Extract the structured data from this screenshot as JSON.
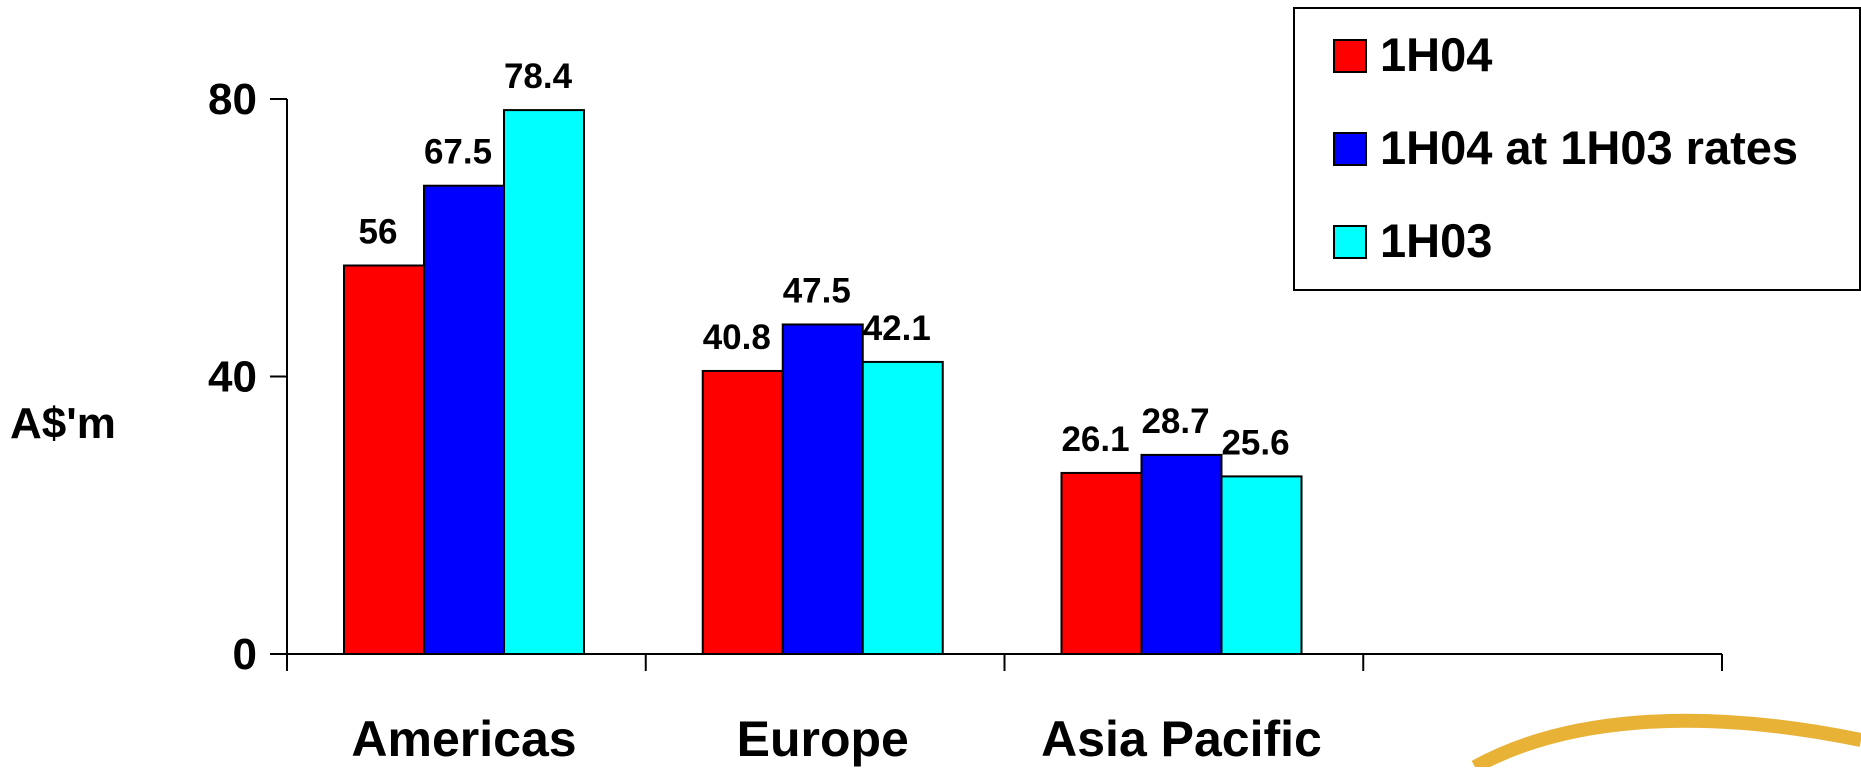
{
  "chart_data": {
    "type": "bar",
    "title": "",
    "xlabel": "",
    "ylabel": "A$'m",
    "categories": [
      "Americas",
      "Europe",
      "Asia Pacific",
      ""
    ],
    "series": [
      {
        "name": "1H04",
        "color": "#ff0000",
        "values": [
          56,
          40.8,
          26.1,
          null
        ],
        "labels": [
          "56",
          "40.8",
          "26.1",
          ""
        ]
      },
      {
        "name": "1H04 at 1H03 rates",
        "color": "#0000ff",
        "values": [
          67.5,
          47.5,
          28.7,
          null
        ],
        "labels": [
          "67.5",
          "47.5",
          "28.7",
          ""
        ]
      },
      {
        "name": "1H03",
        "color": "#00ffff",
        "values": [
          78.4,
          42.1,
          25.6,
          null
        ],
        "labels": [
          "78.4",
          "42.1",
          "25.6",
          ""
        ]
      }
    ],
    "ylim": [
      0,
      80
    ],
    "yticks": [
      0,
      40,
      80
    ],
    "ytick_labels": [
      "0",
      "40",
      "80"
    ],
    "grid": false,
    "legend_position": "top-right"
  },
  "decoration": {
    "swoosh_color": "#e8b236"
  }
}
